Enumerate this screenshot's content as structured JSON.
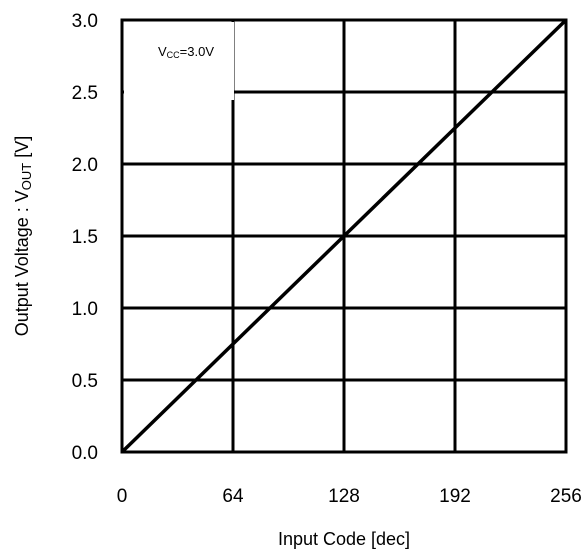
{
  "chart_data": {
    "type": "line",
    "x": [
      0,
      256
    ],
    "series": [
      {
        "values": [
          0.0,
          3.0
        ],
        "color": "#000000"
      }
    ],
    "xlabel": "Input Code [dec]",
    "ylabel": "Output Voltage : V",
    "ylabel_subscript": "OUT",
    "ylabel_unit": " [V]",
    "xlim": [
      0,
      256
    ],
    "ylim": [
      0.0,
      3.0
    ],
    "xticks": [
      0,
      64,
      128,
      192,
      256
    ],
    "xtick_labels": [
      "0",
      "64",
      "128",
      "192",
      "256"
    ],
    "yticks": [
      0.0,
      0.5,
      1.0,
      1.5,
      2.0,
      2.5,
      3.0
    ],
    "ytick_labels": [
      "0.0",
      "0.5",
      "1.0",
      "1.5",
      "2.0",
      "2.5",
      "3.0"
    ],
    "grid": true,
    "annotation": {
      "main": "V",
      "subscript": "CC",
      "rest": "=3.0V"
    }
  }
}
